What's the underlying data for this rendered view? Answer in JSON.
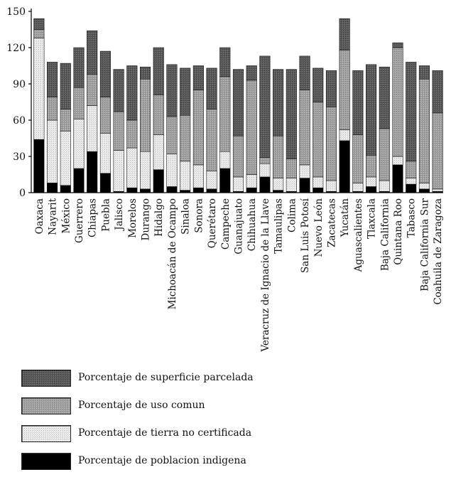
{
  "chart_data": {
    "type": "bar",
    "stacked": true,
    "title": "",
    "xlabel": "",
    "ylabel": "",
    "ylim": [
      0,
      150
    ],
    "yticks": [
      0,
      30,
      60,
      90,
      120,
      150
    ],
    "grid": false,
    "legend_position": "bottom-left",
    "categories": [
      "Oaxaca",
      "Nayarit",
      "México",
      "Guerrero",
      "Chiapas",
      "Puebla",
      "Jalisco",
      "Morelos",
      "Durango",
      "Hidalgo",
      "Michoacán de Ocampo",
      "Sinaloa",
      "Sonora",
      "Querétaro",
      "Campeche",
      "Guanajuato",
      "Chihuahua",
      "Veracruz de Ignacio de la Llave",
      "Tamaulipas",
      "Colima",
      "San Luis Potosí",
      "Nuevo León",
      "Zacatecas",
      "Yucatán",
      "Aguascalientes",
      "Tlaxcala",
      "Baja California",
      "Quintana Roo",
      "Tabasco",
      "Baja California Sur",
      "Coahuila de Zaragoza"
    ],
    "series": [
      {
        "name": "Porcentaje de poblacion indigena",
        "color": "#000000",
        "values": [
          44,
          8,
          6,
          20,
          34,
          16,
          1,
          4,
          3,
          19,
          5,
          2,
          4,
          3,
          20,
          1,
          4,
          13,
          2,
          1,
          12,
          4,
          1,
          43,
          1,
          5,
          1,
          23,
          7,
          3,
          1
        ]
      },
      {
        "name": "Porcentaje de tierra no certificada",
        "color": "#e0e0e0",
        "values": [
          84,
          52,
          45,
          41,
          38,
          33,
          34,
          33,
          31,
          29,
          27,
          24,
          19,
          15,
          14,
          12,
          11,
          11,
          10,
          11,
          11,
          9,
          9,
          9,
          7,
          8,
          9,
          7,
          5,
          5,
          2
        ]
      },
      {
        "name": "Porcentaje de uso comun",
        "color": "#9e9e9e",
        "values": [
          7,
          19,
          18,
          26,
          26,
          30,
          32,
          23,
          60,
          33,
          31,
          38,
          62,
          51,
          62,
          34,
          78,
          5,
          35,
          16,
          62,
          62,
          61,
          66,
          40,
          18,
          43,
          90,
          14,
          86,
          63
        ]
      },
      {
        "name": "Porcentaje de superficie parcelada",
        "color": "#555555",
        "values": [
          9,
          29,
          38,
          33,
          36,
          38,
          35,
          45,
          10,
          39,
          43,
          39,
          20,
          34,
          24,
          55,
          12,
          84,
          55,
          74,
          28,
          28,
          30,
          26,
          53,
          75,
          51,
          4,
          82,
          11,
          35
        ]
      }
    ]
  }
}
